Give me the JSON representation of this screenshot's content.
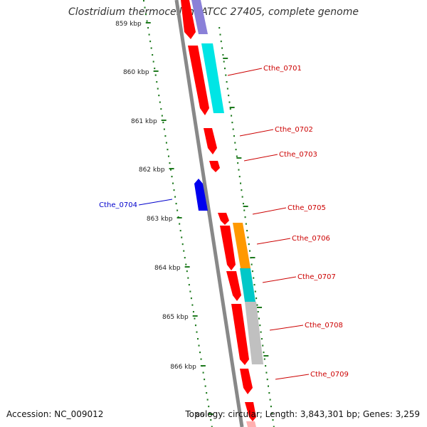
{
  "title": "Clostridium thermocellum ATCC 27405, complete genome",
  "footer": {
    "accession": "Accession: NC_009012",
    "info": "Topology: circular; Length: 3,843,301 bp; Genes: 3,259"
  },
  "colors": {
    "backbone": "#888888",
    "forward_gene": "#ff0000",
    "reverse_gene": "#0000ee",
    "tick": "#1e7a1e",
    "label_forward": "#cc0000",
    "label_reverse": "#0000cc"
  },
  "scale_labels": [
    "859 kbp",
    "860 kbp",
    "861 kbp",
    "862 kbp",
    "863 kbp",
    "864 kbp",
    "865 kbp",
    "866 kbp",
    "86"
  ],
  "gene_labels": [
    {
      "text": "Cthe_0701",
      "strand": "forward"
    },
    {
      "text": "Cthe_0702",
      "strand": "forward"
    },
    {
      "text": "Cthe_0703",
      "strand": "forward"
    },
    {
      "text": "Cthe_0704",
      "strand": "reverse"
    },
    {
      "text": "Cthe_0705",
      "strand": "forward"
    },
    {
      "text": "Cthe_0706",
      "strand": "forward"
    },
    {
      "text": "Cthe_0707",
      "strand": "forward"
    },
    {
      "text": "Cthe_0708",
      "strand": "forward"
    },
    {
      "text": "Cthe_0709",
      "strand": "forward"
    }
  ]
}
